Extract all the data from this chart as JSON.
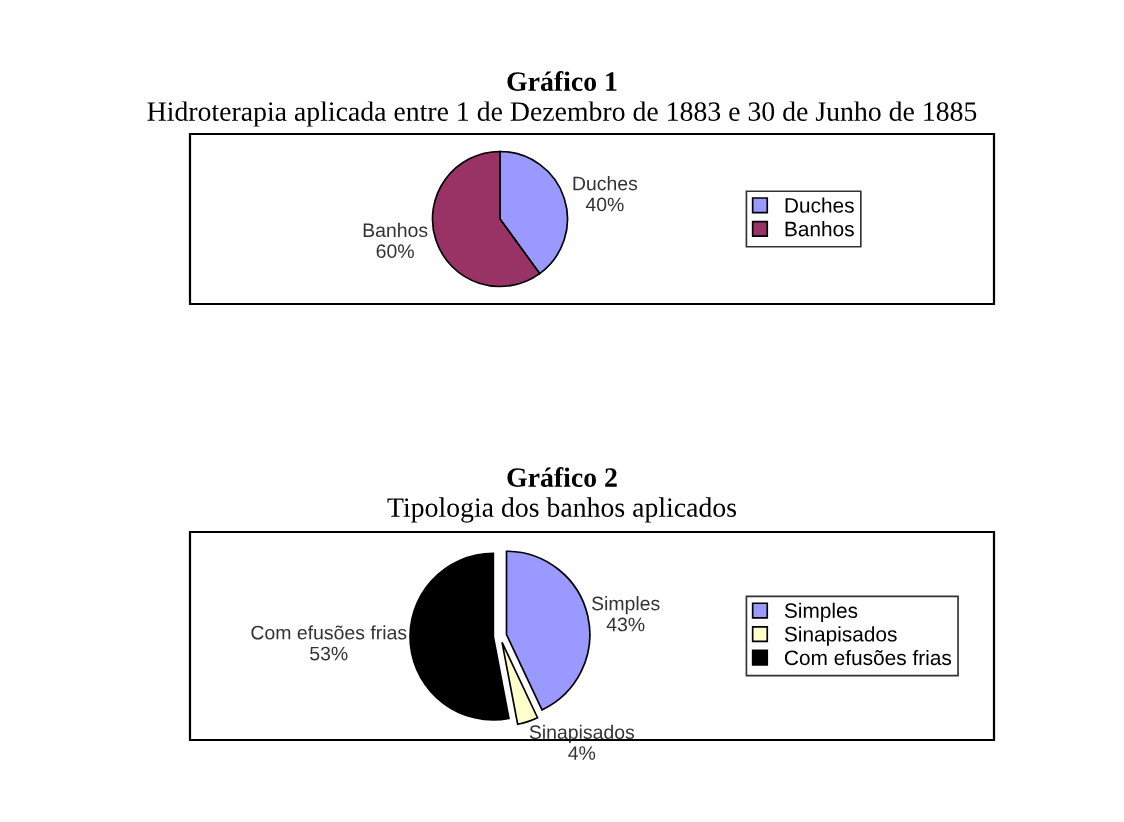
{
  "chart_data": [
    {
      "type": "pie",
      "title": "Gráfico 1",
      "subtitle": "Hidroterapia aplicada entre 1 de Dezembro de 1883 e 30 de Junho de 1885",
      "categories": [
        "Duches",
        "Banhos"
      ],
      "values": [
        40,
        60
      ],
      "value_labels": [
        "40%",
        "60%"
      ],
      "colors": [
        "#9999ff",
        "#993366"
      ],
      "legend": "right"
    },
    {
      "type": "pie",
      "title": "Gráfico 2",
      "subtitle": "Tipologia dos banhos aplicados",
      "categories": [
        "Simples",
        "Sinapisados",
        "Com efusões frias"
      ],
      "values": [
        43,
        4,
        53
      ],
      "value_labels": [
        "43%",
        "4%",
        "53%"
      ],
      "colors": [
        "#9999ff",
        "#ffffcc",
        "#000000"
      ],
      "legend": "right"
    }
  ]
}
